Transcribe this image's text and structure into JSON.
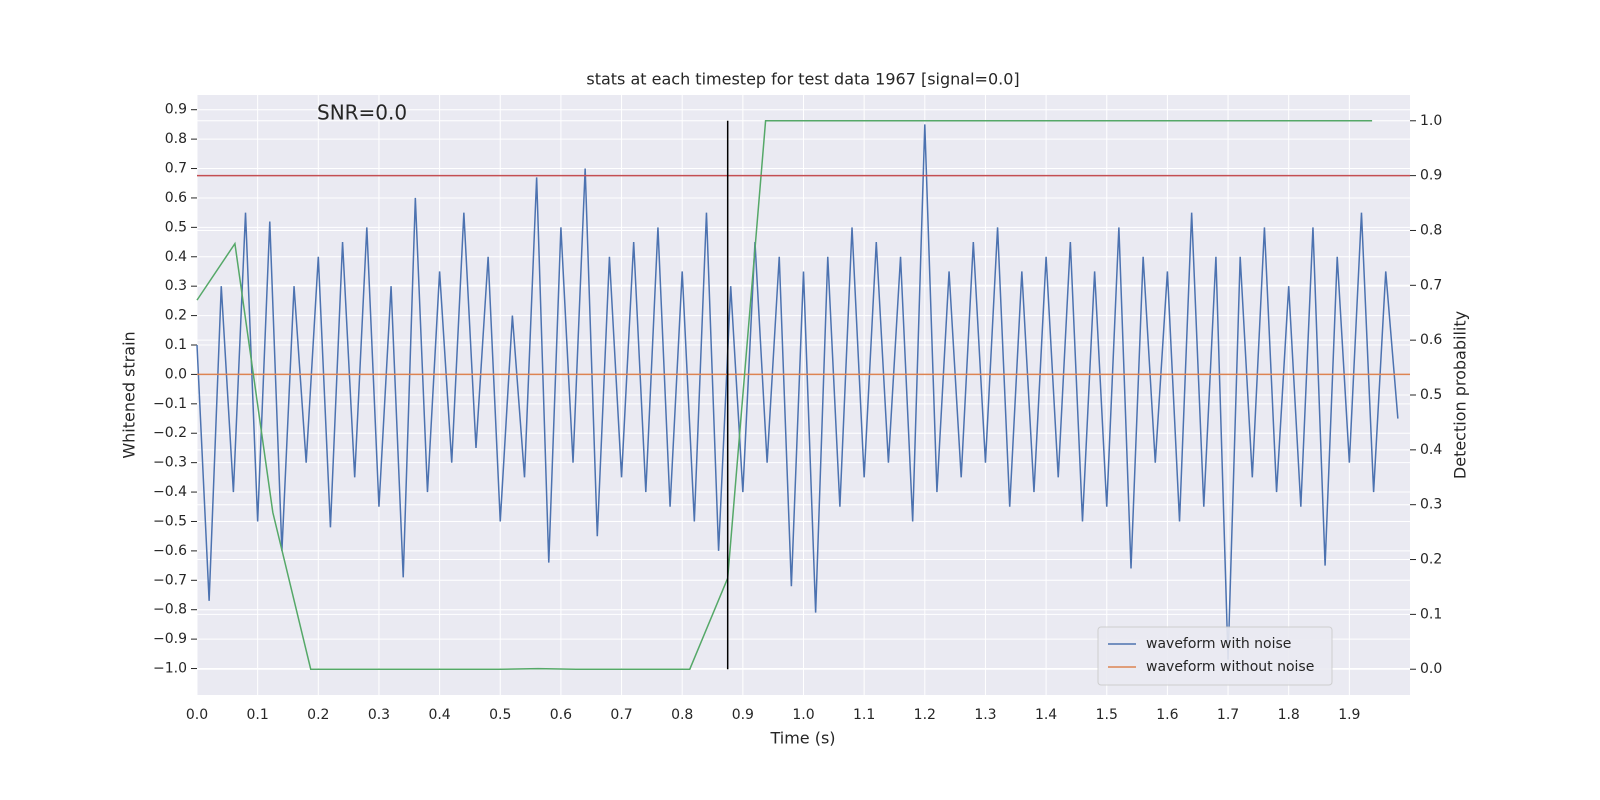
{
  "chart_data": {
    "type": "line",
    "title": "stats at each timestep for test data 1967 [signal=0.0]",
    "annotation": "SNR=0.0",
    "xlabel": "Time (s)",
    "ylabel": "Whitened strain",
    "y2label": "Detection probability",
    "xlim": [
      0,
      2.0
    ],
    "ylim": [
      -1.09,
      0.95
    ],
    "y2lim": [
      -0.047,
      1.047
    ],
    "xticks": [
      {
        "value": 0,
        "label": "0.0"
      },
      0.1,
      0.2,
      0.3,
      0.4,
      0.5,
      0.6,
      0.7,
      0.8,
      0.9,
      {
        "value": 1,
        "label": "1.0"
      },
      1.1,
      1.2,
      1.3,
      1.4,
      1.5,
      1.6,
      1.7,
      1.8,
      1.9
    ],
    "yticks": [
      {
        "value": -1,
        "label": "−1.0"
      },
      {
        "value": -0.9,
        "label": "−0.9"
      },
      {
        "value": -0.8,
        "label": "−0.8"
      },
      {
        "value": -0.7,
        "label": "−0.7"
      },
      {
        "value": -0.6,
        "label": "−0.6"
      },
      {
        "value": -0.5,
        "label": "−0.5"
      },
      {
        "value": -0.4,
        "label": "−0.4"
      },
      {
        "value": -0.3,
        "label": "−0.3"
      },
      {
        "value": -0.2,
        "label": "−0.2"
      },
      {
        "value": -0.1,
        "label": "−0.1"
      },
      {
        "value": 0,
        "label": "0.0"
      },
      0.1,
      0.2,
      0.3,
      0.4,
      0.5,
      0.6,
      0.7,
      0.8,
      0.9
    ],
    "y2ticks": [
      {
        "value": 0,
        "label": "0.0"
      },
      0.1,
      0.2,
      0.3,
      0.4,
      0.5,
      0.6,
      0.7,
      0.8,
      0.9,
      {
        "value": 1,
        "label": "1.0"
      }
    ],
    "grid": true,
    "legend": "lower right",
    "series": [
      {
        "name": "waveform with noise",
        "color": "#4c72b0",
        "x": [
          0,
          0.02,
          0.04,
          0.06,
          0.08,
          0.1,
          0.12,
          0.14,
          0.16,
          0.18,
          0.2,
          0.22,
          0.24,
          0.26,
          0.28,
          0.3,
          0.32,
          0.34,
          0.36,
          0.38,
          0.4,
          0.42,
          0.44,
          0.46,
          0.48,
          0.5,
          0.52,
          0.54,
          0.56,
          0.58,
          0.6,
          0.62,
          0.64,
          0.66,
          0.68,
          0.7,
          0.72,
          0.74,
          0.76,
          0.78,
          0.8,
          0.82,
          0.84,
          0.86,
          0.88,
          0.9,
          0.92,
          0.94,
          0.96,
          0.98,
          1,
          1.02,
          1.04,
          1.06,
          1.08,
          1.1,
          1.12,
          1.14,
          1.16,
          1.18,
          1.2,
          1.22,
          1.24,
          1.26,
          1.28,
          1.3,
          1.32,
          1.34,
          1.36,
          1.38,
          1.4,
          1.42,
          1.44,
          1.46,
          1.48,
          1.5,
          1.52,
          1.54,
          1.56,
          1.58,
          1.6,
          1.62,
          1.64,
          1.66,
          1.68,
          1.7,
          1.72,
          1.74,
          1.76,
          1.78,
          1.8,
          1.82,
          1.84,
          1.86,
          1.88,
          1.9,
          1.92,
          1.94,
          1.96,
          1.98
        ],
        "values": [
          0.1,
          -0.77,
          0.3,
          -0.4,
          0.55,
          -0.5,
          0.52,
          -0.6,
          0.3,
          -0.3,
          0.4,
          -0.52,
          0.45,
          -0.35,
          0.5,
          -0.45,
          0.3,
          -0.69,
          0.6,
          -0.4,
          0.35,
          -0.3,
          0.55,
          -0.25,
          0.4,
          -0.5,
          0.2,
          -0.35,
          0.67,
          -0.64,
          0.5,
          -0.3,
          0.7,
          -0.55,
          0.4,
          -0.35,
          0.45,
          -0.4,
          0.5,
          -0.45,
          0.35,
          -0.5,
          0.55,
          -0.6,
          0.3,
          -0.4,
          0.45,
          -0.3,
          0.4,
          -0.72,
          0.35,
          -0.81,
          0.4,
          -0.45,
          0.5,
          -0.35,
          0.45,
          -0.3,
          0.4,
          -0.5,
          0.85,
          -0.4,
          0.35,
          -0.35,
          0.45,
          -0.3,
          0.5,
          -0.45,
          0.35,
          -0.4,
          0.4,
          -0.35,
          0.45,
          -0.5,
          0.35,
          -0.45,
          0.5,
          -0.66,
          0.4,
          -0.3,
          0.35,
          -0.5,
          0.55,
          -0.45,
          0.4,
          -0.97,
          0.4,
          -0.35,
          0.5,
          -0.4,
          0.3,
          -0.45,
          0.5,
          -0.65,
          0.4,
          -0.3,
          0.55,
          -0.4,
          0.35,
          -0.15
        ]
      },
      {
        "name": "waveform without noise",
        "color": "#dd8452",
        "x": [
          0,
          2.0
        ],
        "values": [
          0,
          0
        ]
      },
      {
        "color": "#55a868",
        "axis": "y2",
        "x": [
          0,
          0.0625,
          0.125,
          0.1875,
          0.25,
          0.3125,
          0.375,
          0.4375,
          0.5,
          0.5625,
          0.625,
          0.6875,
          0.75,
          0.8125,
          0.875,
          0.9375,
          1,
          1.0625,
          1.125,
          1.1875,
          1.25,
          1.3125,
          1.375,
          1.4375,
          1.5,
          1.5625,
          1.625,
          1.6875,
          1.75,
          1.8125,
          1.875,
          1.9375
        ],
        "values": [
          0.673,
          0.776,
          0.286,
          0.0,
          0.0,
          0.0,
          0.0,
          0.0,
          0.0,
          0.001,
          0.0,
          0.0,
          0.0,
          0.0,
          0.166,
          1.0,
          1.0,
          1.0,
          1.0,
          1.0,
          1.0,
          1.0,
          1.0,
          1.0,
          1.0,
          1.0,
          1.0,
          1.0,
          1.0,
          1.0,
          1.0,
          1.0
        ]
      }
    ],
    "hline": {
      "y": 0.9,
      "axis": "y2",
      "color": "#c44e52"
    },
    "vline": {
      "x": 0.875,
      "ymin": 0,
      "ymax": 1,
      "axis": "y2",
      "color": "#000000"
    }
  }
}
